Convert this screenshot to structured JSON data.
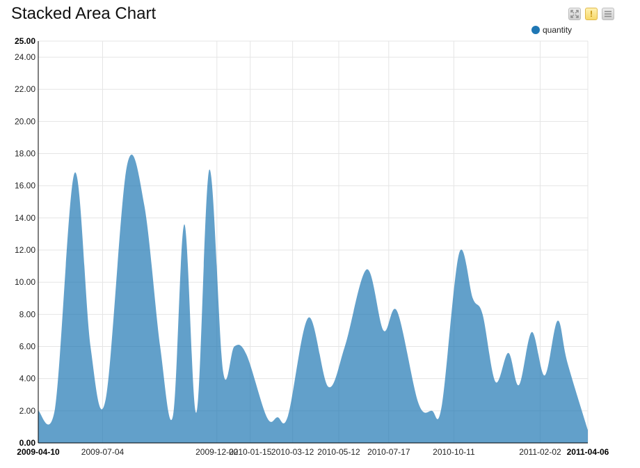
{
  "header": {
    "title": "Stacked Area Chart"
  },
  "toolbar": {
    "buttons": [
      {
        "name": "fullscreen-button",
        "icon": "expand-icon"
      },
      {
        "name": "warning-button",
        "icon": "warning-icon",
        "glyph": "!"
      },
      {
        "name": "menu-button",
        "icon": "menu-icon"
      }
    ]
  },
  "colors": {
    "series": "#1f77b4",
    "area_opacity": 0.7,
    "grid": "#e5e5e5",
    "axis": "#000000"
  },
  "chart_data": {
    "type": "area",
    "title": "Stacked Area Chart",
    "xlabel": "",
    "ylabel": "",
    "ylim": [
      0,
      25
    ],
    "xlim": [
      "2009-04-10",
      "2011-04-06"
    ],
    "grid": true,
    "legend_position": "top-right",
    "y_ticks": [
      "0.00",
      "2.00",
      "4.00",
      "6.00",
      "8.00",
      "10.00",
      "12.00",
      "14.00",
      "16.00",
      "18.00",
      "20.00",
      "22.00",
      "24.00",
      "25.00"
    ],
    "x_ticks": [
      "2009-04-10",
      "2009-07-04",
      "2009-12-02",
      "2010-01-15",
      "2010-03-12",
      "2010-05-12",
      "2010-07-17",
      "2010-10-11",
      "2011-02-02",
      "2011-04-06"
    ],
    "series": [
      {
        "name": "quantity",
        "points": [
          [
            "2009-04-10",
            2.0
          ],
          [
            "2009-05-02",
            2.1
          ],
          [
            "2009-05-28",
            16.8
          ],
          [
            "2009-06-18",
            6.0
          ],
          [
            "2009-07-08",
            2.7
          ],
          [
            "2009-08-05",
            17.2
          ],
          [
            "2009-08-28",
            14.8
          ],
          [
            "2009-09-18",
            6.0
          ],
          [
            "2009-10-05",
            1.7
          ],
          [
            "2009-10-20",
            13.6
          ],
          [
            "2009-11-05",
            1.9
          ],
          [
            "2009-11-22",
            17.0
          ],
          [
            "2009-12-10",
            4.5
          ],
          [
            "2009-12-25",
            6.0
          ],
          [
            "2010-01-10",
            5.5
          ],
          [
            "2010-02-06",
            1.6
          ],
          [
            "2010-02-20",
            1.6
          ],
          [
            "2010-03-06",
            1.7
          ],
          [
            "2010-04-02",
            7.8
          ],
          [
            "2010-04-28",
            3.5
          ],
          [
            "2010-05-20",
            6.0
          ],
          [
            "2010-06-18",
            10.8
          ],
          [
            "2010-07-10",
            7.0
          ],
          [
            "2010-07-28",
            8.2
          ],
          [
            "2010-08-25",
            2.5
          ],
          [
            "2010-09-12",
            2.0
          ],
          [
            "2010-09-25",
            2.3
          ],
          [
            "2010-10-18",
            11.8
          ],
          [
            "2010-11-05",
            9.0
          ],
          [
            "2010-11-18",
            8.0
          ],
          [
            "2010-12-05",
            3.8
          ],
          [
            "2010-12-22",
            5.6
          ],
          [
            "2011-01-05",
            3.6
          ],
          [
            "2011-01-22",
            6.9
          ],
          [
            "2011-02-08",
            4.2
          ],
          [
            "2011-02-25",
            7.6
          ],
          [
            "2011-03-10",
            5.0
          ],
          [
            "2011-04-06",
            0.8
          ]
        ]
      }
    ]
  }
}
